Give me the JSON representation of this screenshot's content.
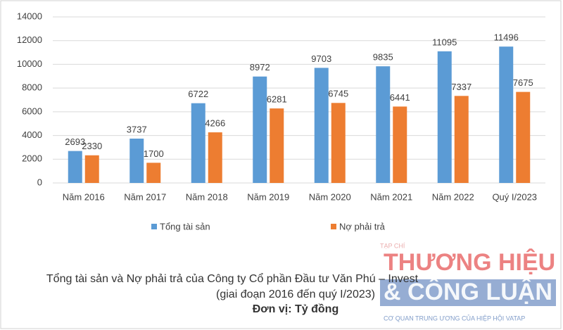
{
  "chart_data": {
    "type": "bar",
    "title": "Tổng tài sản và Nợ phải trả của Công ty Cổ phần Đầu tư Văn Phú – Invest",
    "subtitle": "(giai đoạn 2016 đến quý I/2023)",
    "unit_note": "Đơn vị: Tỷ đồng",
    "categories": [
      "Năm 2016",
      "Năm 2017",
      "Năm 2018",
      "Năm 2019",
      "Năm 2020",
      "Năm 2021",
      "Năm 2022",
      "Quý I/2023"
    ],
    "series": [
      {
        "name": "Tổng tài sản",
        "color": "#5b9bd5",
        "values": [
          2693,
          3737,
          6722,
          8972,
          9703,
          9835,
          11095,
          11496
        ]
      },
      {
        "name": "Nợ phải trả",
        "color": "#ed7d31",
        "values": [
          2330,
          1700,
          4266,
          6281,
          6745,
          6441,
          7337,
          7675
        ]
      }
    ],
    "ylim": [
      0,
      14000
    ],
    "yticks": [
      0,
      2000,
      4000,
      6000,
      8000,
      10000,
      12000,
      14000
    ],
    "grid": true,
    "legend": "bottom"
  },
  "watermark": {
    "kicker": "TẠP CHÍ",
    "line1": "THƯƠNG HIỆU",
    "line2": "& CÔNG LUẬN",
    "tagline": "CƠ QUAN TRUNG ƯƠNG CỦA HIỆP HỘI VATAP"
  }
}
